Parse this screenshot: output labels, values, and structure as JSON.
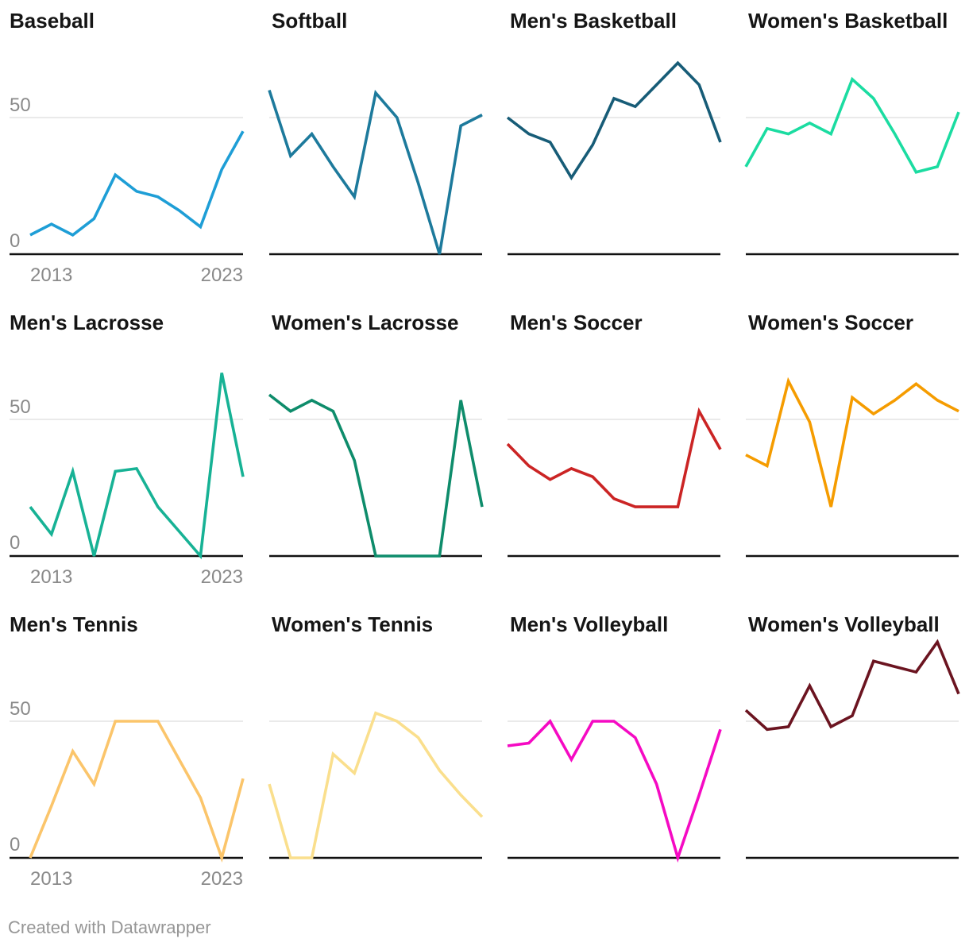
{
  "footer": {
    "text": "Created with Datawrapper"
  },
  "style": {
    "background": "#ffffff",
    "grid_color": "#e3e3e3",
    "axis_color": "#111111",
    "label_color": "#8a8a8a",
    "title_color": "#151515"
  },
  "chart_data": {
    "type": "line",
    "layout": "small-multiples 4 columns x 3 rows",
    "title": "",
    "xlabel": "",
    "ylabel": "",
    "x": [
      2013,
      2014,
      2015,
      2016,
      2017,
      2018,
      2019,
      2020,
      2021,
      2022,
      2023
    ],
    "x_tick_labels": [
      "2013",
      "2023"
    ],
    "y_tick_labels": [
      "0",
      "50"
    ],
    "y_ticks": [
      0,
      50
    ],
    "ylim": [
      0,
      83
    ],
    "grid": "single horizontal gridline at y=50",
    "legend": "none",
    "axis_labels_shown_only_on_first_column": true,
    "series": [
      {
        "name": "Baseball",
        "color": "#1E9ED6",
        "values": [
          7,
          11,
          7,
          13,
          29,
          23,
          21,
          16,
          10,
          31,
          45
        ]
      },
      {
        "name": "Softball",
        "color": "#1D7A9C",
        "values": [
          60,
          36,
          44,
          32,
          21,
          59,
          50,
          26,
          0,
          47,
          51
        ]
      },
      {
        "name": "Men's Basketball",
        "color": "#175C77",
        "values": [
          50,
          44,
          41,
          28,
          40,
          57,
          54,
          62,
          70,
          62,
          41
        ]
      },
      {
        "name": "Women's Basketball",
        "color": "#1BDCA1",
        "values": [
          32,
          46,
          44,
          48,
          44,
          64,
          57,
          44,
          30,
          32,
          52
        ]
      },
      {
        "name": "Men's Lacrosse",
        "color": "#17B295",
        "values": [
          18,
          8,
          31,
          0,
          31,
          32,
          18,
          9,
          0,
          67,
          29
        ]
      },
      {
        "name": "Women's Lacrosse",
        "color": "#0E8C6B",
        "values": [
          59,
          53,
          57,
          53,
          35,
          0,
          0,
          0,
          0,
          57,
          18
        ]
      },
      {
        "name": "Men's Soccer",
        "color": "#CB2424",
        "values": [
          41,
          33,
          28,
          32,
          29,
          21,
          18,
          18,
          18,
          53,
          39
        ]
      },
      {
        "name": "Women's Soccer",
        "color": "#F59C00",
        "values": [
          37,
          33,
          64,
          49,
          18,
          58,
          52,
          57,
          63,
          57,
          53
        ]
      },
      {
        "name": "Men's Tennis",
        "color": "#FBC56B",
        "values": [
          0,
          19,
          39,
          27,
          50,
          50,
          50,
          36,
          22,
          0,
          29
        ]
      },
      {
        "name": "Women's Tennis",
        "color": "#FADF8D",
        "values": [
          27,
          0,
          0,
          38,
          31,
          53,
          50,
          44,
          32,
          23,
          15
        ]
      },
      {
        "name": "Men's Volleyball",
        "color": "#F50AC3",
        "values": [
          41,
          42,
          50,
          36,
          50,
          50,
          44,
          27,
          0,
          23,
          47
        ]
      },
      {
        "name": "Women's Volleyball",
        "color": "#6B1420",
        "values": [
          54,
          47,
          48,
          63,
          48,
          52,
          72,
          70,
          68,
          79,
          60
        ]
      }
    ]
  }
}
